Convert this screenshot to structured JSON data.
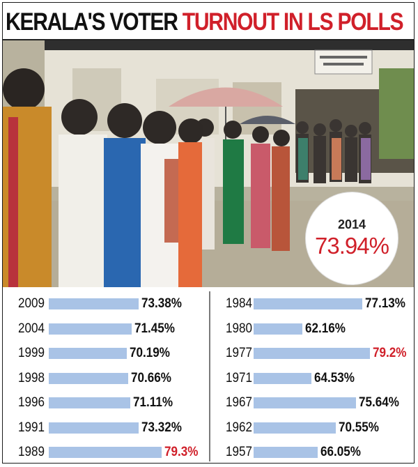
{
  "title": {
    "part1": "KERALA'S VOTER",
    "part2": "TURNOUT IN LS POLLS"
  },
  "colors": {
    "accent_red": "#d0202a",
    "bar_blue": "#a9c3e6",
    "text_dark": "#111111"
  },
  "highlight": {
    "year": "2014",
    "value": "73.94%"
  },
  "chart_data": {
    "type": "bar",
    "orientation": "horizontal",
    "columns": [
      {
        "rows": [
          {
            "year": "2009",
            "value": 73.38,
            "label": "73.38%",
            "highlight": false
          },
          {
            "year": "2004",
            "value": 71.45,
            "label": "71.45%",
            "highlight": false
          },
          {
            "year": "1999",
            "value": 70.19,
            "label": "70.19%",
            "highlight": false
          },
          {
            "year": "1998",
            "value": 70.66,
            "label": "70.66%",
            "highlight": false
          },
          {
            "year": "1996",
            "value": 71.11,
            "label": "71.11%",
            "highlight": false
          },
          {
            "year": "1991",
            "value": 73.32,
            "label": "73.32%",
            "highlight": false
          },
          {
            "year": "1989",
            "value": 79.3,
            "label": "79.3%",
            "highlight": true
          }
        ]
      },
      {
        "rows": [
          {
            "year": "1984",
            "value": 77.13,
            "label": "77.13%",
            "highlight": false
          },
          {
            "year": "1980",
            "value": 62.16,
            "label": "62.16%",
            "highlight": false
          },
          {
            "year": "1977",
            "value": 79.2,
            "label": "79.2%",
            "highlight": true
          },
          {
            "year": "1971",
            "value": 64.53,
            "label": "64.53%",
            "highlight": false
          },
          {
            "year": "1967",
            "value": 75.64,
            "label": "75.64%",
            "highlight": false
          },
          {
            "year": "1962",
            "value": 70.55,
            "label": "70.55%",
            "highlight": false
          },
          {
            "year": "1957",
            "value": 66.05,
            "label": "66.05%",
            "highlight": false
          }
        ]
      }
    ]
  }
}
